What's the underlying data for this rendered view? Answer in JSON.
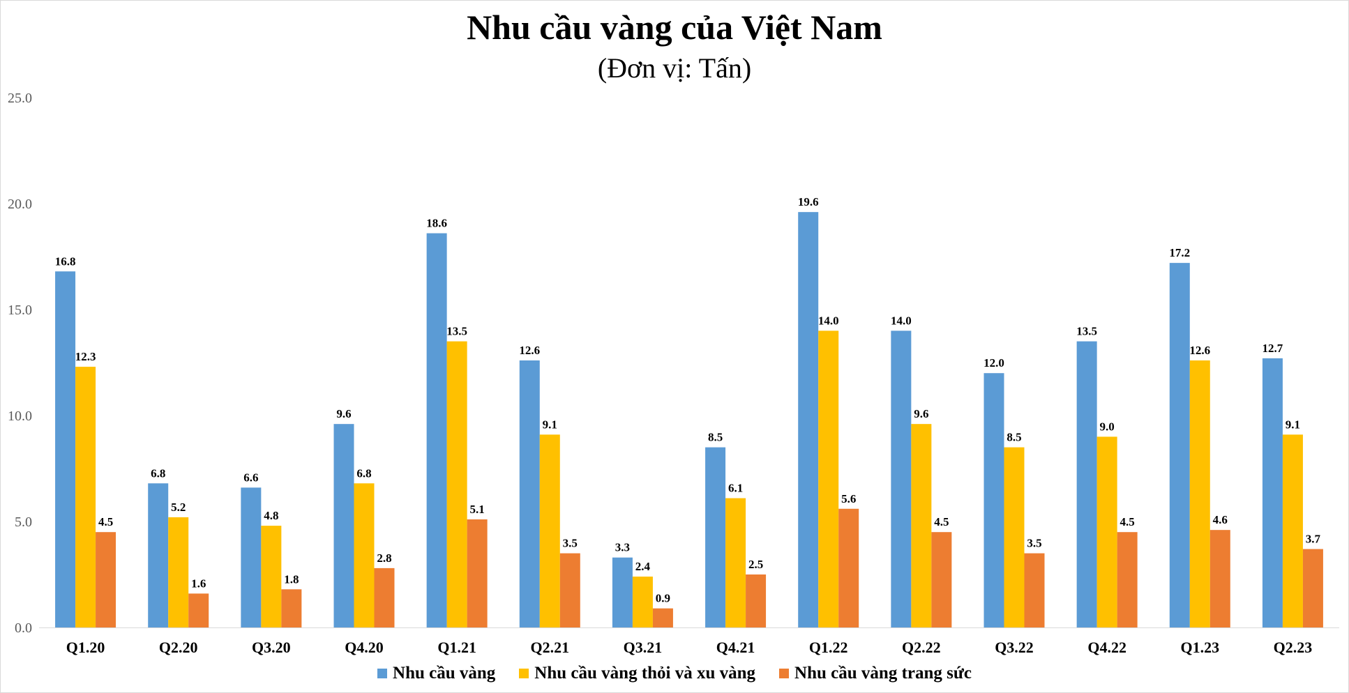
{
  "header": {
    "title": "Nhu cầu vàng của Việt Nam",
    "subtitle": "(Đơn vị: Tấn)"
  },
  "chart_data": {
    "type": "bar",
    "title": "Nhu cầu vàng của Việt Nam",
    "subtitle": "(Đơn vị: Tấn)",
    "xlabel": "",
    "ylabel": "",
    "ylim": [
      0,
      25
    ],
    "yticks": [
      "0.0",
      "5.0",
      "10.0",
      "15.0",
      "20.0",
      "25.0"
    ],
    "grid": false,
    "legend_position": "bottom",
    "categories": [
      "Q1.20",
      "Q2.20",
      "Q3.20",
      "Q4.20",
      "Q1.21",
      "Q2.21",
      "Q3.21",
      "Q4.21",
      "Q1.22",
      "Q2.22",
      "Q3.22",
      "Q4.22",
      "Q1.23",
      "Q2.23"
    ],
    "series": [
      {
        "name": "Nhu cầu vàng",
        "color": "#5B9BD5",
        "values": [
          16.8,
          6.8,
          6.6,
          9.6,
          18.6,
          12.6,
          3.3,
          8.5,
          19.6,
          14.0,
          12.0,
          13.5,
          17.2,
          12.7
        ]
      },
      {
        "name": "Nhu cầu vàng thỏi và xu vàng",
        "color": "#FFC000",
        "values": [
          12.3,
          5.2,
          4.8,
          6.8,
          13.5,
          9.1,
          2.4,
          6.1,
          14.0,
          9.6,
          8.5,
          9.0,
          12.6,
          9.1
        ]
      },
      {
        "name": "Nhu cầu vàng trang sức",
        "color": "#ED7D31",
        "values": [
          4.5,
          1.6,
          1.8,
          2.8,
          5.1,
          3.5,
          0.9,
          2.5,
          5.6,
          4.5,
          3.5,
          4.5,
          4.6,
          3.7
        ]
      }
    ]
  }
}
